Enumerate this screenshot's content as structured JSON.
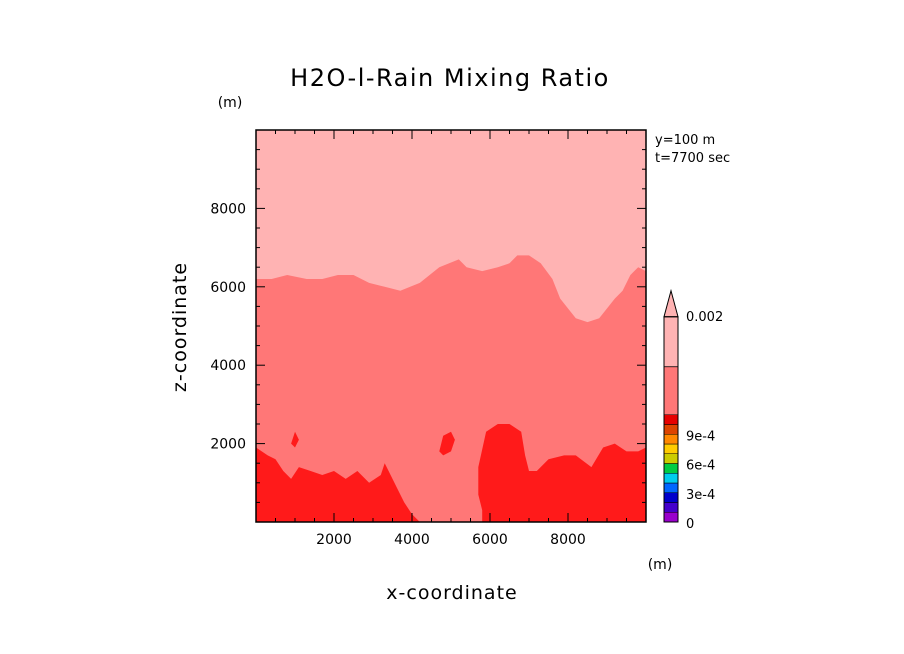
{
  "chart_data": {
    "type": "heatmap",
    "title": "H2O-l-Rain Mixing Ratio",
    "xlabel": "x-coordinate",
    "ylabel": "z-coordinate",
    "x_unit": "(m)",
    "z_unit": "(m)",
    "annotations": [
      "y=100 m",
      "t=7700 sec"
    ],
    "xlim": [
      0,
      10000
    ],
    "ylim": [
      0,
      10000
    ],
    "x_ticks": [
      2000,
      4000,
      6000,
      8000
    ],
    "y_ticks": [
      2000,
      4000,
      6000,
      8000
    ],
    "x_tick_labels": [
      "2000",
      "4000",
      "6000",
      "8000"
    ],
    "y_tick_labels": [
      "2000",
      "4000",
      "6000",
      "8000"
    ],
    "colorbar": {
      "labels": [
        "0.002",
        "9e-4",
        "6e-4",
        "3e-4",
        "0"
      ],
      "label_values": [
        0.002,
        0.0009,
        0.0006,
        0.0003,
        0
      ],
      "levels": [
        {
          "color": "#9900cc"
        },
        {
          "color": "#4400cc"
        },
        {
          "color": "#0000cc"
        },
        {
          "color": "#0066ff"
        },
        {
          "color": "#00ccee"
        },
        {
          "color": "#00cc44"
        },
        {
          "color": "#cccc00"
        },
        {
          "color": "#ffcc00"
        },
        {
          "color": "#ff8800"
        },
        {
          "color": "#dd4400"
        },
        {
          "color": "#e60000"
        },
        {
          "color": "#ff7777"
        }
      ],
      "extend_color": "#ffb3b3"
    },
    "regions": [
      {
        "name": "upper-light-region",
        "color": "#ffb3b3",
        "polygon": [
          [
            0,
            0
          ],
          [
            10000,
            0
          ],
          [
            10000,
            10000
          ],
          [
            0,
            10000
          ]
        ]
      },
      {
        "name": "mid-salmon-region",
        "color": "#ff7777",
        "polygon": [
          [
            0,
            0
          ],
          [
            10000,
            0
          ],
          [
            10000,
            6400
          ],
          [
            9800,
            6500
          ],
          [
            9600,
            6300
          ],
          [
            9400,
            5900
          ],
          [
            9200,
            5700
          ],
          [
            8800,
            5200
          ],
          [
            8500,
            5100
          ],
          [
            8200,
            5200
          ],
          [
            7800,
            5700
          ],
          [
            7600,
            6200
          ],
          [
            7300,
            6600
          ],
          [
            7000,
            6800
          ],
          [
            6700,
            6800
          ],
          [
            6500,
            6600
          ],
          [
            6200,
            6500
          ],
          [
            5800,
            6400
          ],
          [
            5400,
            6500
          ],
          [
            5200,
            6700
          ],
          [
            4700,
            6500
          ],
          [
            4200,
            6100
          ],
          [
            3700,
            5900
          ],
          [
            3300,
            6000
          ],
          [
            2900,
            6100
          ],
          [
            2500,
            6300
          ],
          [
            2100,
            6300
          ],
          [
            1700,
            6200
          ],
          [
            1300,
            6200
          ],
          [
            800,
            6300
          ],
          [
            400,
            6200
          ],
          [
            0,
            6200
          ]
        ]
      },
      {
        "name": "lower-red-region",
        "color": "#ff1a1a",
        "polygon": [
          [
            0,
            0
          ],
          [
            4200,
            0
          ],
          [
            4000,
            200
          ],
          [
            3800,
            500
          ],
          [
            3600,
            900
          ],
          [
            3400,
            1300
          ],
          [
            3300,
            1500
          ],
          [
            3200,
            1200
          ],
          [
            2900,
            1000
          ],
          [
            2600,
            1300
          ],
          [
            2300,
            1100
          ],
          [
            2000,
            1300
          ],
          [
            1700,
            1200
          ],
          [
            1400,
            1300
          ],
          [
            1100,
            1400
          ],
          [
            900,
            1100
          ],
          [
            700,
            1300
          ],
          [
            500,
            1600
          ],
          [
            300,
            1700
          ],
          [
            0,
            1900
          ]
        ]
      },
      {
        "name": "lower-red-region-right",
        "color": "#ff1a1a",
        "polygon": [
          [
            5800,
            0
          ],
          [
            10000,
            0
          ],
          [
            10000,
            1900
          ],
          [
            9800,
            1800
          ],
          [
            9500,
            1800
          ],
          [
            9200,
            2000
          ],
          [
            8900,
            1900
          ],
          [
            8600,
            1400
          ],
          [
            8200,
            1700
          ],
          [
            7900,
            1700
          ],
          [
            7500,
            1600
          ],
          [
            7200,
            1300
          ],
          [
            7000,
            1300
          ],
          [
            6900,
            1700
          ],
          [
            6800,
            2300
          ],
          [
            6500,
            2500
          ],
          [
            6200,
            2500
          ],
          [
            5900,
            2300
          ],
          [
            5700,
            1400
          ],
          [
            5700,
            700
          ],
          [
            5800,
            300
          ]
        ]
      },
      {
        "name": "red-blob-center",
        "color": "#ff1a1a",
        "polygon": [
          [
            4700,
            1800
          ],
          [
            4800,
            2200
          ],
          [
            5000,
            2300
          ],
          [
            5100,
            2100
          ],
          [
            5000,
            1800
          ],
          [
            4800,
            1700
          ]
        ]
      },
      {
        "name": "red-blob-left",
        "color": "#ff1a1a",
        "polygon": [
          [
            900,
            2000
          ],
          [
            1000,
            2300
          ],
          [
            1100,
            2100
          ],
          [
            1000,
            1900
          ]
        ]
      }
    ]
  }
}
